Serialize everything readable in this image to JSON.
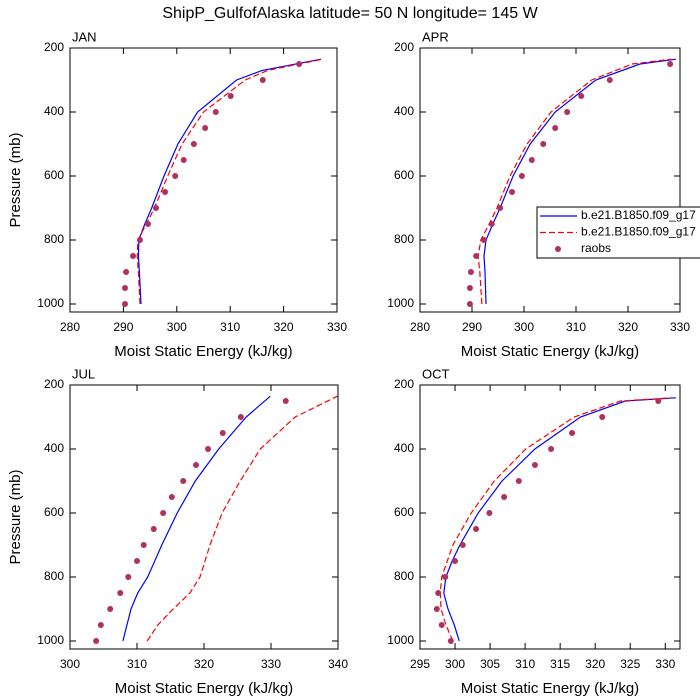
{
  "title": "ShipP_GulfofAlaska  latitude= 50 N longitude= 145 W",
  "chart_data": [
    {
      "type": "line",
      "title": "JAN",
      "xlabel": "Moist Static Energy (kJ/kg)",
      "ylabel": "Pressure (mb)",
      "xlim": [
        280,
        330
      ],
      "ylim": [
        1025,
        200
      ],
      "xticks": [
        280,
        290,
        300,
        310,
        320,
        330
      ],
      "yticks": [
        200,
        400,
        600,
        800,
        1000
      ],
      "series": [
        {
          "color": "#0000ff",
          "line_style": "solid",
          "x": [
            293.3,
            293.0,
            292.8,
            292.9,
            294.0,
            295.3,
            297.6,
            300.2,
            303.9,
            311.2,
            316,
            327
          ],
          "y": [
            1000,
            900,
            850,
            800,
            750,
            700,
            600,
            500,
            400,
            300,
            270,
            235
          ]
        },
        {
          "color": "#ff0000",
          "line_style": "dashed",
          "x": [
            293.1,
            292.8,
            292.6,
            292.7,
            294.3,
            295.8,
            298.3,
            301,
            305,
            312.8,
            317,
            327.3
          ],
          "y": [
            1000,
            900,
            850,
            800,
            750,
            700,
            600,
            500,
            400,
            300,
            270,
            235
          ]
        },
        {
          "color": "#b03060",
          "line_style": "markers",
          "x": [
            290.3,
            290.3,
            290.5,
            291.8,
            293.1,
            294.6,
            296.1,
            297.8,
            299.7,
            301.3,
            303.2,
            305.3,
            307.3,
            310.1,
            316.1,
            322.9
          ],
          "y": [
            1000,
            950,
            900,
            850,
            800,
            750,
            700,
            650,
            600,
            550,
            500,
            450,
            400,
            350,
            300,
            250
          ]
        }
      ]
    },
    {
      "type": "line",
      "title": "APR",
      "xlabel": "Moist Static Energy (kJ/kg)",
      "legend": "right",
      "xlim": [
        280,
        330
      ],
      "ylim": [
        1025,
        200
      ],
      "xticks": [
        280,
        290,
        300,
        310,
        320,
        330
      ],
      "yticks": [
        200,
        400,
        600,
        800,
        1000
      ],
      "series": [
        {
          "name": "b.e21.B1850.f09_g17",
          "color": "#0000ff",
          "line_style": "solid",
          "x": [
            292.7,
            292.5,
            292.3,
            292.7,
            294,
            295.4,
            297.9,
            301.2,
            306,
            313.8,
            322.3,
            329.2
          ],
          "y": [
            1000,
            900,
            850,
            800,
            750,
            700,
            600,
            500,
            400,
            300,
            250,
            235
          ]
        },
        {
          "name": "b.e21.B1850.f09_g17",
          "color": "#ff0000",
          "line_style": "dashed",
          "x": [
            291.9,
            291.5,
            291.2,
            291.7,
            293.3,
            294.8,
            297.3,
            300.6,
            305.2,
            313,
            320.8,
            328.3
          ],
          "y": [
            1000,
            900,
            850,
            800,
            750,
            700,
            600,
            500,
            400,
            300,
            250,
            235
          ]
        },
        {
          "name": "raobs",
          "color": "#b03060",
          "line_style": "markers",
          "x": [
            289.6,
            289.6,
            289.8,
            290.8,
            292.3,
            293.8,
            295.4,
            297.7,
            299.6,
            301.5,
            303.7,
            306,
            308.3,
            311,
            316.5,
            328.1
          ],
          "y": [
            1000,
            950,
            900,
            850,
            800,
            750,
            700,
            650,
            600,
            550,
            500,
            450,
            400,
            350,
            300,
            250
          ]
        }
      ]
    },
    {
      "type": "line",
      "title": "JUL",
      "xlabel": "Moist Static Energy (kJ/kg)",
      "ylabel": "Pressure (mb)",
      "xlim": [
        300,
        340
      ],
      "ylim": [
        1025,
        200
      ],
      "xticks": [
        300,
        310,
        320,
        330,
        340
      ],
      "yticks": [
        200,
        400,
        600,
        800,
        1000
      ],
      "series": [
        {
          "color": "#0000ff",
          "line_style": "solid",
          "x": [
            307.9,
            309.1,
            310.1,
            311.6,
            313.7,
            316,
            318.7,
            322.2,
            326.3,
            329.9
          ],
          "y": [
            1000,
            900,
            850,
            800,
            700,
            600,
            500,
            400,
            300,
            235
          ]
        },
        {
          "color": "#ff0000",
          "line_style": "dashed",
          "x": [
            311.5,
            313.1,
            315.4,
            317.9,
            319.4,
            320.9,
            322.7,
            325.4,
            328.4,
            333.6,
            339.9
          ],
          "y": [
            1000,
            950,
            900,
            850,
            800,
            700,
            600,
            500,
            400,
            300,
            235
          ]
        },
        {
          "color": "#b03060",
          "line_style": "markers",
          "x": [
            303.9,
            304.6,
            306,
            307.5,
            308.7,
            310,
            311,
            312.5,
            313.9,
            315.2,
            316.9,
            318.8,
            320.6,
            322.8,
            325.5,
            332.2
          ],
          "y": [
            1000,
            950,
            900,
            850,
            800,
            750,
            700,
            650,
            600,
            550,
            500,
            450,
            400,
            350,
            300,
            250
          ]
        }
      ]
    },
    {
      "type": "line",
      "title": "OCT",
      "xlabel": "Moist Static Energy (kJ/kg)",
      "xlim": [
        295,
        332.1
      ],
      "ylim": [
        1025,
        200
      ],
      "xticks": [
        295,
        300,
        305,
        310,
        315,
        320,
        325,
        330
      ],
      "yticks": [
        200,
        400,
        600,
        800,
        1000
      ],
      "series": [
        {
          "color": "#0000ff",
          "line_style": "solid",
          "x": [
            300.6,
            299.9,
            299,
            298.4,
            298.7,
            299.6,
            300.7,
            303.3,
            306.7,
            311.4,
            317.9,
            324.3,
            331.5
          ],
          "y": [
            1000,
            950,
            900,
            850,
            800,
            750,
            700,
            600,
            500,
            400,
            300,
            250,
            240
          ]
        },
        {
          "color": "#ff0000",
          "line_style": "dashed",
          "x": [
            299.7,
            298.7,
            298,
            297.9,
            298.1,
            298.9,
            299.7,
            302.3,
            305.6,
            310.1,
            317,
            323.6,
            331
          ],
          "y": [
            1000,
            950,
            900,
            850,
            800,
            750,
            700,
            600,
            500,
            400,
            300,
            250,
            240
          ]
        },
        {
          "color": "#b03060",
          "line_style": "markers",
          "x": [
            299.4,
            298.1,
            297.4,
            297.6,
            298.6,
            300,
            301.1,
            303,
            304.9,
            307,
            309.1,
            311.4,
            313.7,
            316.7,
            321,
            329
          ],
          "y": [
            1000,
            950,
            900,
            850,
            800,
            750,
            700,
            650,
            600,
            550,
            500,
            450,
            400,
            350,
            300,
            250
          ]
        }
      ]
    }
  ]
}
